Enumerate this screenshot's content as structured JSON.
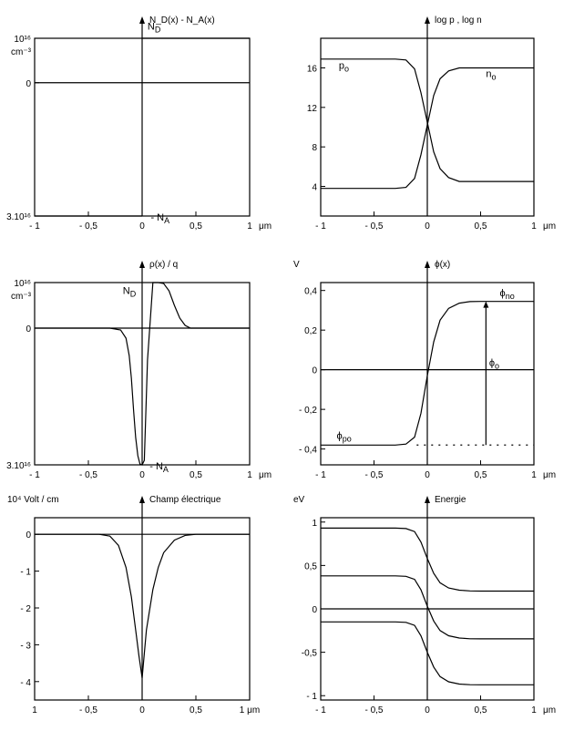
{
  "colors": {
    "ink": "#000000",
    "background": "#ffffff"
  },
  "chart_data": [
    {
      "type": "line",
      "title": "N_D(x) - N_A(x)",
      "xlabel": "μm",
      "xlim": [
        -1,
        1
      ],
      "ylim": [
        -3,
        1
      ],
      "x_ticks": [
        "- 1",
        "- 0,5",
        "0",
        "0,5",
        "1"
      ],
      "y_ticks": [
        {
          "v": 1,
          "label": "10¹⁶",
          "sub": "cm⁻³"
        },
        {
          "v": 0,
          "label": "0",
          "sub": ""
        },
        {
          "v": -3,
          "label": "3.10¹⁶",
          "sub": ""
        }
      ],
      "zero_line": true,
      "series": [
        {
          "x": [
            -1,
            0
          ],
          "y": [
            -3,
            -3
          ]
        },
        {
          "x": [
            0,
            1
          ],
          "y": [
            1,
            1
          ]
        }
      ],
      "annotations": [
        {
          "text": "N",
          "sub": "D",
          "x": 0.05,
          "y": 1.2
        },
        {
          "text": "- N",
          "sub": "A",
          "x": 0.08,
          "y": -3.1
        }
      ]
    },
    {
      "type": "line",
      "title": "log p , log n",
      "xlabel": "μm",
      "xlim": [
        -1,
        1
      ],
      "ylim": [
        1,
        19
      ],
      "x_ticks": [
        "- 1",
        "- 0,5",
        "0",
        "0,5",
        "1"
      ],
      "y_ticks": [
        {
          "v": 16,
          "label": "16",
          "sub": ""
        },
        {
          "v": 12,
          "label": "12",
          "sub": ""
        },
        {
          "v": 8,
          "label": "8",
          "sub": ""
        },
        {
          "v": 4,
          "label": "4",
          "sub": ""
        }
      ],
      "zero_line": false,
      "series": [
        {
          "x": [
            -1,
            -0.3,
            -0.2,
            -0.12,
            -0.06,
            0,
            0.06,
            0.12,
            0.2,
            0.3,
            1
          ],
          "y": [
            16.9,
            16.9,
            16.8,
            15.9,
            13.5,
            10.5,
            7.5,
            5.8,
            4.9,
            4.5,
            4.5
          ]
        },
        {
          "x": [
            -1,
            -0.3,
            -0.2,
            -0.12,
            -0.06,
            0,
            0.06,
            0.12,
            0.2,
            0.3,
            1
          ],
          "y": [
            3.8,
            3.8,
            3.9,
            4.8,
            7.2,
            10.2,
            13.2,
            14.9,
            15.7,
            16.0,
            16.0
          ]
        }
      ],
      "annotations": [
        {
          "text": "p",
          "sub": "o",
          "x": -0.83,
          "y": 15.9
        },
        {
          "text": "n",
          "sub": "o",
          "x": 0.55,
          "y": 15.1
        }
      ]
    },
    {
      "type": "line",
      "title": "ρ(x) / q",
      "xlabel": "μm",
      "xlim": [
        -1,
        1
      ],
      "ylim": [
        -3,
        1
      ],
      "x_ticks": [
        "- 1",
        "- 0,5",
        "0",
        "0,5",
        "1"
      ],
      "y_ticks": [
        {
          "v": 1,
          "label": "10¹⁶",
          "sub": "cm⁻³"
        },
        {
          "v": 0,
          "label": "0",
          "sub": ""
        },
        {
          "v": -3,
          "label": "3.10¹⁶",
          "sub": ""
        }
      ],
      "zero_line": true,
      "series": [
        {
          "x": [
            -1,
            -0.3,
            -0.2,
            -0.15,
            -0.12,
            -0.1,
            -0.08,
            -0.06,
            -0.04,
            -0.02,
            0,
            0.02,
            0.05,
            0.1,
            0.15,
            0.2,
            0.25,
            0.3,
            0.35,
            0.4,
            0.45,
            1
          ],
          "y": [
            0,
            0,
            -0.04,
            -0.22,
            -0.6,
            -1.1,
            -1.8,
            -2.4,
            -2.8,
            -2.98,
            -3,
            -2.9,
            -0.7,
            1.0,
            1.0,
            0.98,
            0.82,
            0.5,
            0.22,
            0.06,
            0,
            0
          ]
        }
      ],
      "annotations": [
        {
          "text": "N",
          "sub": "D",
          "x": -0.18,
          "y": 0.75
        },
        {
          "text": "- N",
          "sub": "A",
          "x": 0.07,
          "y": -3.1
        }
      ]
    },
    {
      "type": "line",
      "title": "ϕ(x)",
      "ylabel": "V",
      "xlabel": "μm",
      "xlim": [
        -1,
        1
      ],
      "ylim": [
        -0.48,
        0.44
      ],
      "x_ticks": [
        "- 1",
        "- 0,5",
        "0",
        "0,5",
        "1"
      ],
      "y_ticks": [
        {
          "v": 0.4,
          "label": "0,4",
          "sub": ""
        },
        {
          "v": 0.2,
          "label": "0,2",
          "sub": ""
        },
        {
          "v": 0,
          "label": "0",
          "sub": ""
        },
        {
          "v": -0.2,
          "label": "- 0,2",
          "sub": ""
        },
        {
          "v": -0.4,
          "label": "- 0,4",
          "sub": ""
        }
      ],
      "zero_line": true,
      "series": [
        {
          "x": [
            -1,
            -0.3,
            -0.2,
            -0.12,
            -0.06,
            0,
            0.06,
            0.12,
            0.2,
            0.3,
            0.4,
            0.5,
            1
          ],
          "y": [
            -0.38,
            -0.38,
            -0.375,
            -0.34,
            -0.22,
            -0.03,
            0.14,
            0.25,
            0.31,
            0.336,
            0.344,
            0.345,
            0.345
          ]
        }
      ],
      "reference_line": {
        "x": [
          -0.1,
          1
        ],
        "y": -0.38,
        "style": "dotted"
      },
      "arrow": {
        "x": 0.55,
        "y_from": -0.38,
        "y_to": 0.345
      },
      "annotations": [
        {
          "text": "ϕ",
          "sub": "po",
          "x": -0.85,
          "y": -0.35
        },
        {
          "text": "ϕ",
          "sub": "no",
          "x": 0.68,
          "y": 0.37
        },
        {
          "text": "ϕ",
          "sub": "o",
          "x": 0.58,
          "y": 0.02
        }
      ]
    },
    {
      "type": "line",
      "title": "Champ électrique",
      "ylabel": "10⁴  Volt / cm",
      "xlabel": "μm",
      "xlim": [
        -1,
        1
      ],
      "ylim": [
        -4.5,
        0.45
      ],
      "x_ticks": [
        "1",
        "- 0,5",
        "0",
        "0,5",
        "1 μm"
      ],
      "y_ticks": [
        {
          "v": 0,
          "label": "0",
          "sub": ""
        },
        {
          "v": -1,
          "label": "- 1",
          "sub": ""
        },
        {
          "v": -2,
          "label": "- 2",
          "sub": ""
        },
        {
          "v": -3,
          "label": "- 3",
          "sub": ""
        },
        {
          "v": -4,
          "label": "- 4",
          "sub": ""
        }
      ],
      "zero_line": true,
      "series": [
        {
          "x": [
            -1,
            -0.4,
            -0.3,
            -0.22,
            -0.15,
            -0.1,
            -0.06,
            -0.03,
            0,
            0.04,
            0.1,
            0.15,
            0.2,
            0.3,
            0.4,
            0.5,
            1
          ],
          "y": [
            0,
            0,
            -0.05,
            -0.3,
            -0.9,
            -1.7,
            -2.6,
            -3.3,
            -3.9,
            -2.6,
            -1.5,
            -0.9,
            -0.5,
            -0.16,
            -0.03,
            0,
            0
          ]
        }
      ],
      "annotations": []
    },
    {
      "type": "line",
      "title": "Energie",
      "ylabel": "eV",
      "xlabel": "μm",
      "xlim": [
        -1,
        1
      ],
      "ylim": [
        -1.05,
        1.05
      ],
      "x_ticks": [
        "- 1",
        "- 0,5",
        "0",
        "0,5",
        "1"
      ],
      "y_ticks": [
        {
          "v": 1,
          "label": "1",
          "sub": ""
        },
        {
          "v": 0.5,
          "label": "0,5",
          "sub": ""
        },
        {
          "v": 0,
          "label": "0",
          "sub": ""
        },
        {
          "v": -0.5,
          "label": "-0,5",
          "sub": ""
        },
        {
          "v": -1,
          "label": "- 1",
          "sub": ""
        }
      ],
      "zero_line": false,
      "series": [
        {
          "x": [
            -1,
            -0.3,
            -0.2,
            -0.12,
            -0.06,
            0,
            0.06,
            0.12,
            0.2,
            0.3,
            0.4,
            0.5,
            1
          ],
          "y": [
            0.93,
            0.93,
            0.925,
            0.89,
            0.77,
            0.58,
            0.41,
            0.3,
            0.24,
            0.215,
            0.207,
            0.205,
            0.205
          ]
        },
        {
          "x": [
            -1,
            -0.3,
            -0.2,
            -0.12,
            -0.06,
            0,
            0.06,
            0.12,
            0.2,
            0.3,
            0.4,
            0.5,
            1
          ],
          "y": [
            0.38,
            0.38,
            0.375,
            0.34,
            0.22,
            0.03,
            -0.14,
            -0.25,
            -0.31,
            -0.336,
            -0.344,
            -0.345,
            -0.345
          ]
        },
        {
          "x": [
            -1,
            1
          ],
          "y": [
            0,
            0
          ]
        },
        {
          "x": [
            -1,
            -0.3,
            -0.2,
            -0.12,
            -0.06,
            0,
            0.06,
            0.12,
            0.2,
            0.3,
            0.4,
            0.5,
            1
          ],
          "y": [
            -0.15,
            -0.15,
            -0.155,
            -0.19,
            -0.31,
            -0.5,
            -0.67,
            -0.78,
            -0.84,
            -0.866,
            -0.874,
            -0.875,
            -0.875
          ]
        }
      ],
      "annotations": []
    }
  ]
}
